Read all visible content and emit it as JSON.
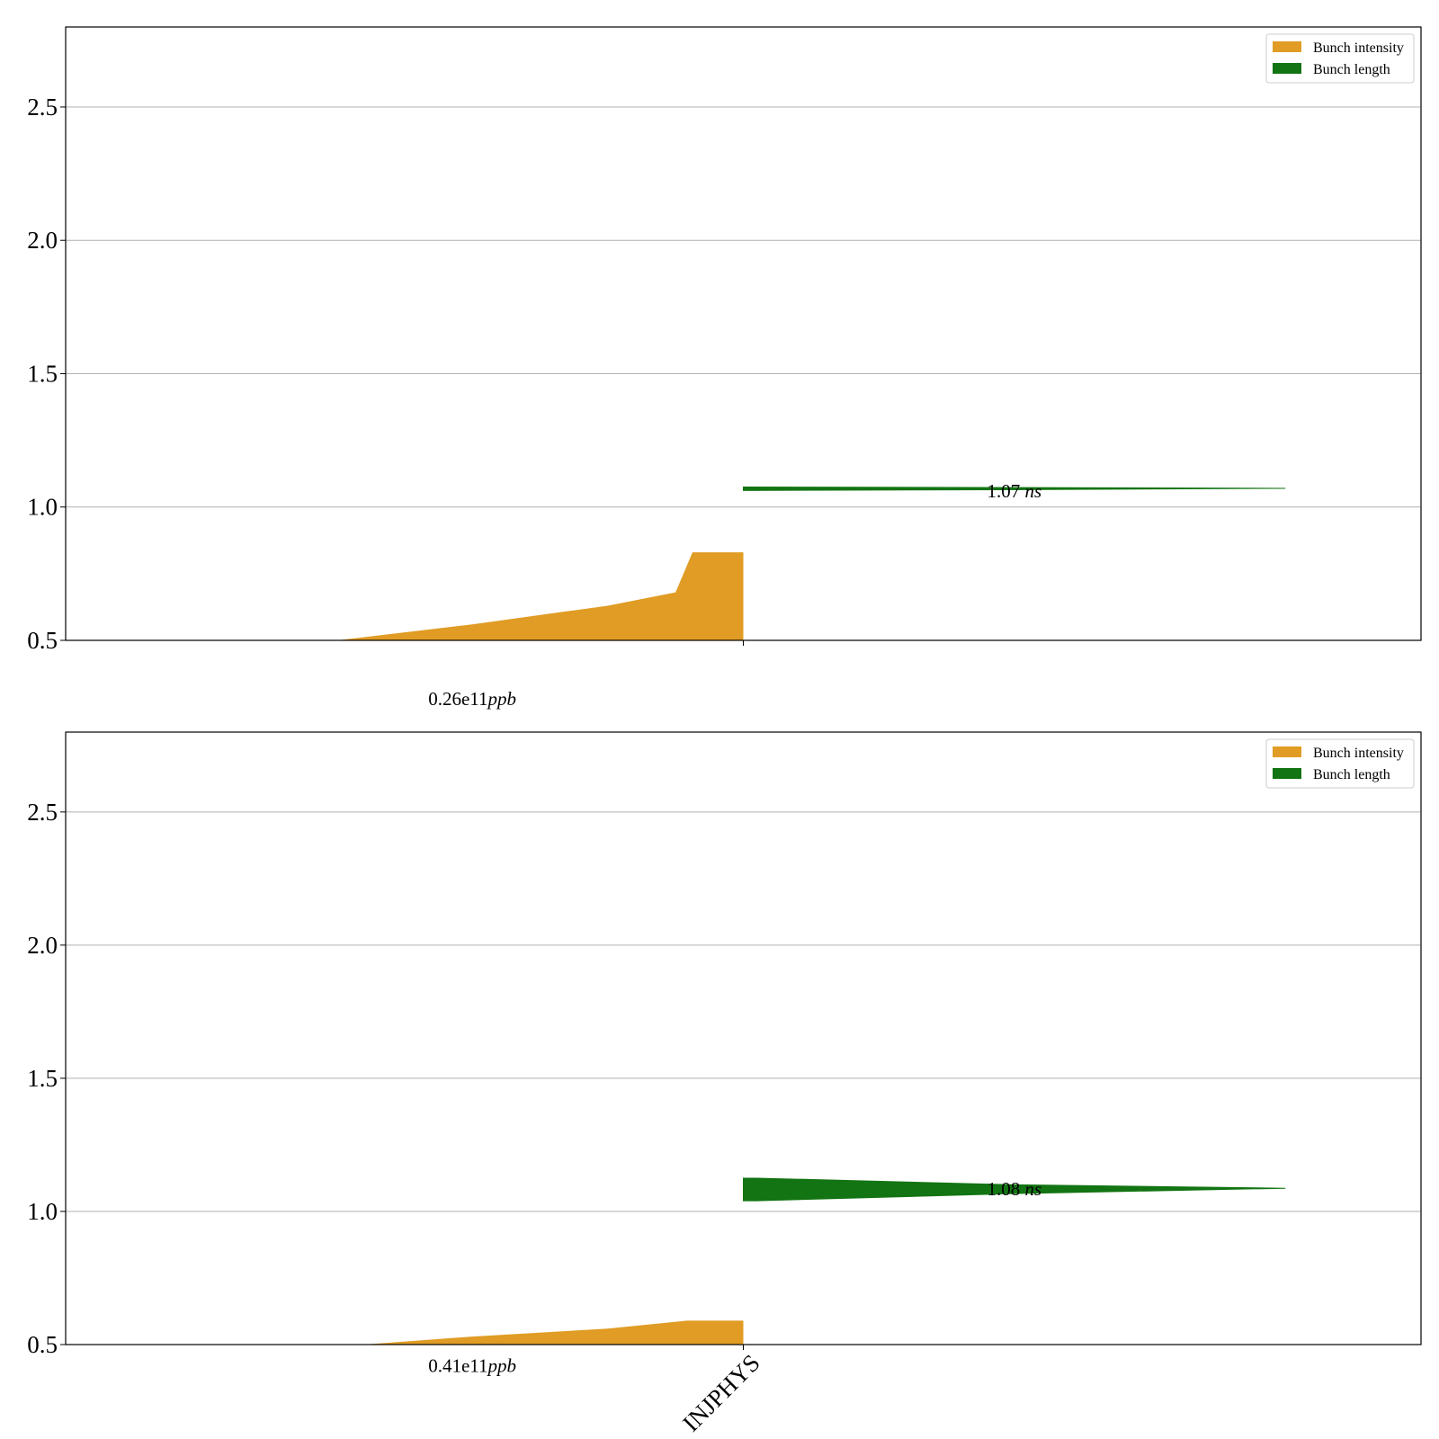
{
  "chart_data": [
    {
      "type": "area",
      "ylim": [
        0.5,
        2.8
      ],
      "yticks": [
        "0.5",
        "1.0",
        "1.5",
        "2.0",
        "2.5"
      ],
      "ytick_values": [
        0.5,
        1.0,
        1.5,
        2.0,
        2.5
      ],
      "xlim": [
        -1.0,
        1.0
      ],
      "xticks": [
        {
          "value": 0.0,
          "label": ""
        }
      ],
      "grid": "y",
      "legend": {
        "placement": "top-right",
        "entries": [
          {
            "label": "Bunch intensity",
            "color": "#e09c24"
          },
          {
            "label": "Bunch length",
            "color": "#127412"
          }
        ]
      },
      "series": [
        {
          "name": "Bunch intensity",
          "color": "#e09c24",
          "points": [
            [
              -0.6,
              0.5
            ],
            [
              -0.4,
              0.56
            ],
            [
              -0.2,
              0.63
            ],
            [
              -0.1,
              0.68
            ],
            [
              -0.03,
              0.76
            ],
            [
              -0.075,
              0.83
            ],
            [
              0.0,
              0.83
            ],
            [
              0.0,
              0.5
            ]
          ],
          "outline_x": [
            -0.6,
            -0.4,
            -0.2,
            -0.1,
            -0.075,
            0.0
          ],
          "outline_y": [
            0.5,
            0.56,
            0.63,
            0.68,
            0.83,
            0.83
          ]
        },
        {
          "name": "Bunch length",
          "color": "#127412",
          "band_x": [
            0.0,
            0.4,
            0.8
          ],
          "band_lower": [
            1.062,
            1.065,
            1.07
          ],
          "band_upper": [
            1.075,
            1.073,
            1.07
          ]
        }
      ],
      "annotations": [
        {
          "text": "0.26e11",
          "unit": "ppb",
          "x": -0.4,
          "y": 0.28
        },
        {
          "text": "1.07 ",
          "unit": "ns",
          "x": 0.4,
          "y": 1.06
        }
      ]
    },
    {
      "type": "area",
      "ylim": [
        0.5,
        2.8
      ],
      "yticks": [
        "0.5",
        "1.0",
        "1.5",
        "2.0",
        "2.5"
      ],
      "ytick_values": [
        0.5,
        1.0,
        1.5,
        2.0,
        2.5
      ],
      "xlim": [
        -1.0,
        1.0
      ],
      "xticks": [
        {
          "value": 0.0,
          "label": "INJPHYS"
        }
      ],
      "grid": "y",
      "legend": {
        "placement": "top-right",
        "entries": [
          {
            "label": "Bunch intensity",
            "color": "#e09c24"
          },
          {
            "label": "Bunch length",
            "color": "#127412"
          }
        ]
      },
      "series": [
        {
          "name": "Bunch intensity",
          "color": "#e09c24",
          "outline_x": [
            -0.56,
            -0.4,
            -0.2,
            -0.083,
            0.0
          ],
          "outline_y": [
            0.5,
            0.53,
            0.56,
            0.59,
            0.59
          ]
        },
        {
          "name": "Bunch length",
          "color": "#127412",
          "band_x": [
            0.0,
            0.02,
            0.4,
            0.8
          ],
          "band_lower": [
            1.04,
            1.04,
            1.067,
            1.087
          ],
          "band_upper": [
            1.125,
            1.125,
            1.1,
            1.087
          ]
        }
      ],
      "annotations": [
        {
          "text": "0.41e11",
          "unit": "ppb",
          "x": -0.4,
          "y": 0.42
        },
        {
          "text": "1.08 ",
          "unit": "ns",
          "x": 0.4,
          "y": 1.085
        }
      ]
    }
  ]
}
